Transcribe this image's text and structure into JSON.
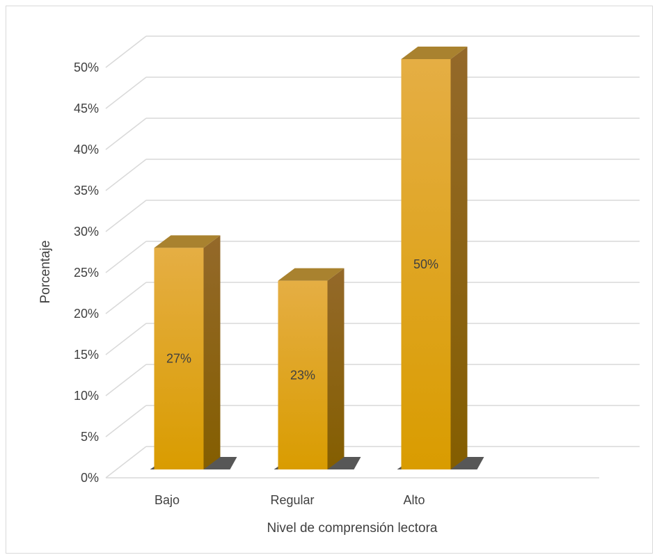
{
  "chart_data": {
    "type": "bar",
    "categories": [
      "Bajo",
      "Regular",
      "Alto"
    ],
    "values": [
      27,
      23,
      50
    ],
    "data_labels": [
      "27%",
      "23%",
      "50%"
    ],
    "xlabel": "Nivel de comprensión lectora",
    "ylabel": "Porcentaje",
    "ylim": [
      0,
      50
    ],
    "yticks": [
      0,
      5,
      10,
      15,
      20,
      25,
      30,
      35,
      40,
      45,
      50
    ],
    "ytick_labels": [
      "0%",
      "5%",
      "10%",
      "15%",
      "20%",
      "25%",
      "30%",
      "35%",
      "40%",
      "45%",
      "50%"
    ],
    "style": "3d-column",
    "grid": true,
    "legend": "none",
    "colors": {
      "bar_front_top": "#e5ae44",
      "bar_front_bottom": "#d99c00",
      "bar_side": "#8a6100",
      "bar_top": "#a9822f",
      "grid": "#d9d9d9",
      "text": "#404040"
    }
  }
}
